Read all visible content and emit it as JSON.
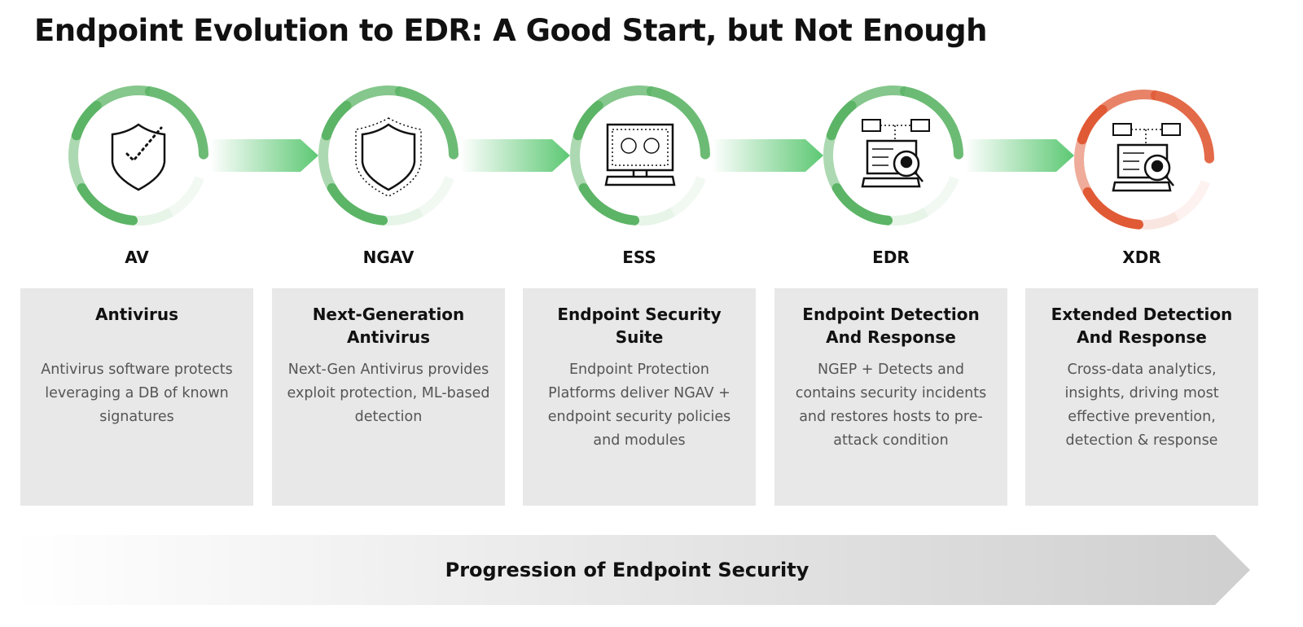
{
  "title": "Endpoint Evolution to EDR: A Good Start, but Not Enough",
  "stages": [
    {
      "abbr": "AV",
      "name": "Antivirus",
      "desc": "Antivirus software protects leveraging a DB of known signatures",
      "icon": "shield-check-icon",
      "color": "#5cb466"
    },
    {
      "abbr": "NGAV",
      "name": "Next-Generation Antivirus",
      "desc": "Next-Gen Antivirus provides exploit protection, ML-based detection",
      "icon": "shield-icon",
      "color": "#5cb466"
    },
    {
      "abbr": "ESS",
      "name": "Endpoint Security Suite",
      "desc": "Endpoint Protection Platforms deliver NGAV + endpoint security policies and modules",
      "icon": "computer-threat-icon",
      "color": "#5cb466"
    },
    {
      "abbr": "EDR",
      "name": "Endpoint Detection And Response",
      "desc": "NGEP + Detects and contains security incidents and restores hosts to pre-attack condition",
      "icon": "network-skull-search-icon",
      "color": "#5cb466"
    },
    {
      "abbr": "XDR",
      "name": "Extended Detection And Response",
      "desc": "Cross-data analytics, insights, driving most effective prevention, detection & response",
      "icon": "network-skull-search-icon",
      "color": "#e05a35"
    }
  ],
  "arrow_color": "#5cc873",
  "progression": "Progression of Endpoint Security"
}
